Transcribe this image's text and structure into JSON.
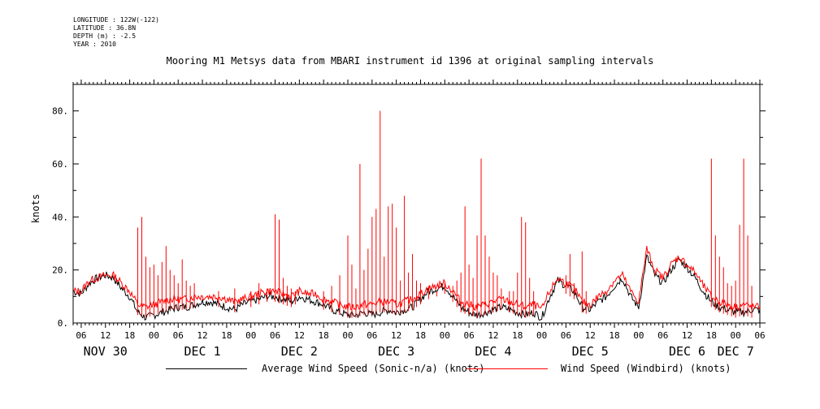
{
  "meta": {
    "longitude": "LONGITUDE : 122W(-122)",
    "latitude": "LATITUDE : 36.8N",
    "depth": "DEPTH (m) : -2.5",
    "year": "YEAR : 2010"
  },
  "chart_data": {
    "type": "line",
    "title": "Mooring M1 Metsys data from MBARI instrument id 1396 at original sampling intervals",
    "ylabel": "knots",
    "xlabel": "",
    "ylim": [
      0,
      90
    ],
    "xlim_hours": [
      4,
      174
    ],
    "y_ticks": [
      0,
      20,
      40,
      60,
      80
    ],
    "y_tick_labels": [
      "0.",
      "20.",
      "40.",
      "60.",
      "80."
    ],
    "x_hour_ticks": [
      {
        "h": 6,
        "label": "06"
      },
      {
        "h": 12,
        "label": "12"
      },
      {
        "h": 18,
        "label": "18"
      },
      {
        "h": 24,
        "label": "00"
      },
      {
        "h": 30,
        "label": "06"
      },
      {
        "h": 36,
        "label": "12"
      },
      {
        "h": 42,
        "label": "18"
      },
      {
        "h": 48,
        "label": "00"
      },
      {
        "h": 54,
        "label": "06"
      },
      {
        "h": 60,
        "label": "12"
      },
      {
        "h": 66,
        "label": "18"
      },
      {
        "h": 72,
        "label": "00"
      },
      {
        "h": 78,
        "label": "06"
      },
      {
        "h": 84,
        "label": "12"
      },
      {
        "h": 90,
        "label": "18"
      },
      {
        "h": 96,
        "label": "00"
      },
      {
        "h": 102,
        "label": "06"
      },
      {
        "h": 108,
        "label": "12"
      },
      {
        "h": 114,
        "label": "18"
      },
      {
        "h": 120,
        "label": "00"
      },
      {
        "h": 126,
        "label": "06"
      },
      {
        "h": 132,
        "label": "12"
      },
      {
        "h": 138,
        "label": "18"
      },
      {
        "h": 144,
        "label": "00"
      },
      {
        "h": 150,
        "label": "06"
      },
      {
        "h": 156,
        "label": "12"
      },
      {
        "h": 162,
        "label": "18"
      },
      {
        "h": 168,
        "label": "00"
      },
      {
        "h": 174,
        "label": "06"
      }
    ],
    "x_day_labels": [
      {
        "h": 12,
        "label": "NOV 30"
      },
      {
        "h": 36,
        "label": "DEC  1"
      },
      {
        "h": 60,
        "label": "DEC  2"
      },
      {
        "h": 84,
        "label": "DEC  3"
      },
      {
        "h": 108,
        "label": "DEC  4"
      },
      {
        "h": 132,
        "label": "DEC  5"
      },
      {
        "h": 156,
        "label": "DEC  6"
      },
      {
        "h": 168,
        "label": "DEC  7"
      }
    ],
    "series": [
      {
        "name": "Average Wind Speed (Sonic-n/a) (knots)",
        "color": "#000000",
        "x": [
          4,
          6,
          8,
          10,
          12,
          14,
          16,
          18,
          20,
          22,
          24,
          26,
          28,
          30,
          32,
          34,
          36,
          38,
          40,
          42,
          44,
          46,
          48,
          50,
          52,
          54,
          56,
          58,
          60,
          62,
          64,
          66,
          68,
          70,
          72,
          74,
          76,
          78,
          80,
          82,
          84,
          86,
          88,
          90,
          92,
          94,
          96,
          98,
          100,
          102,
          104,
          106,
          108,
          110,
          112,
          114,
          116,
          118,
          120,
          122,
          124,
          126,
          128,
          130,
          132,
          134,
          136,
          138,
          140,
          142,
          144,
          146,
          148,
          150,
          152,
          154,
          156,
          158,
          160,
          162,
          164,
          166,
          168,
          170,
          172,
          174
        ],
        "values": [
          12,
          11,
          15,
          17,
          18,
          17,
          13,
          10,
          4,
          2,
          3,
          4,
          5,
          6,
          6,
          7,
          8,
          8,
          7,
          6,
          5,
          7,
          8,
          9,
          10,
          10,
          9,
          8,
          10,
          9,
          8,
          7,
          5,
          4,
          3,
          3,
          4,
          3,
          4,
          5,
          4,
          5,
          6,
          9,
          12,
          13,
          14,
          10,
          6,
          4,
          3,
          4,
          5,
          6,
          5,
          4,
          3,
          4,
          2,
          10,
          16,
          14,
          12,
          6,
          5,
          8,
          10,
          14,
          17,
          10,
          6,
          25,
          18,
          15,
          20,
          24,
          21,
          17,
          12,
          8,
          6,
          5,
          4,
          4,
          5,
          5
        ]
      },
      {
        "name": "Wind Speed (Windbird) (knots)",
        "color": "#ff0000",
        "x": [
          4,
          6,
          8,
          10,
          12,
          14,
          16,
          18,
          20,
          22,
          24,
          26,
          28,
          30,
          32,
          34,
          36,
          38,
          40,
          42,
          44,
          46,
          48,
          50,
          52,
          54,
          56,
          58,
          60,
          62,
          64,
          66,
          68,
          70,
          72,
          74,
          76,
          78,
          80,
          82,
          84,
          86,
          88,
          90,
          92,
          94,
          96,
          98,
          100,
          102,
          104,
          106,
          108,
          110,
          112,
          114,
          116,
          118,
          120,
          122,
          124,
          126,
          128,
          130,
          132,
          134,
          136,
          138,
          140,
          142,
          144,
          146,
          148,
          150,
          152,
          154,
          156,
          158,
          160,
          162,
          164,
          166,
          168,
          170,
          172,
          174
        ],
        "values": [
          12,
          12,
          16,
          17,
          18,
          18,
          15,
          12,
          7,
          6,
          7,
          8,
          9,
          9,
          9,
          10,
          10,
          10,
          10,
          9,
          8,
          9,
          10,
          11,
          12,
          12,
          11,
          10,
          12,
          11,
          11,
          9,
          8,
          7,
          6,
          6,
          7,
          7,
          8,
          8,
          7,
          8,
          9,
          11,
          13,
          14,
          15,
          12,
          8,
          7,
          6,
          7,
          8,
          9,
          8,
          7,
          6,
          7,
          5,
          12,
          17,
          15,
          13,
          8,
          7,
          10,
          12,
          16,
          18,
          12,
          8,
          28,
          20,
          17,
          22,
          25,
          22,
          19,
          14,
          10,
          8,
          7,
          6,
          7,
          6,
          6
        ]
      }
    ],
    "red_spikes": [
      [
        20,
        36
      ],
      [
        21,
        40
      ],
      [
        22,
        25
      ],
      [
        23,
        21
      ],
      [
        24,
        22
      ],
      [
        25,
        18
      ],
      [
        26,
        23
      ],
      [
        27,
        29
      ],
      [
        28,
        20
      ],
      [
        29,
        18
      ],
      [
        30,
        15
      ],
      [
        31,
        24
      ],
      [
        32,
        16
      ],
      [
        33,
        14
      ],
      [
        34,
        15
      ],
      [
        40,
        12
      ],
      [
        44,
        13
      ],
      [
        48,
        12
      ],
      [
        50,
        15
      ],
      [
        52,
        13
      ],
      [
        54,
        41
      ],
      [
        55,
        39
      ],
      [
        56,
        17
      ],
      [
        57,
        14
      ],
      [
        58,
        13
      ],
      [
        59,
        12
      ],
      [
        66,
        12
      ],
      [
        68,
        14
      ],
      [
        70,
        18
      ],
      [
        72,
        33
      ],
      [
        73,
        22
      ],
      [
        74,
        13
      ],
      [
        75,
        60
      ],
      [
        76,
        20
      ],
      [
        77,
        28
      ],
      [
        78,
        40
      ],
      [
        79,
        43
      ],
      [
        80,
        80
      ],
      [
        81,
        25
      ],
      [
        82,
        44
      ],
      [
        83,
        45
      ],
      [
        84,
        36
      ],
      [
        85,
        16
      ],
      [
        86,
        48
      ],
      [
        87,
        19
      ],
      [
        88,
        26
      ],
      [
        89,
        16
      ],
      [
        90,
        15
      ],
      [
        92,
        14
      ],
      [
        94,
        12
      ],
      [
        96,
        15
      ],
      [
        98,
        14
      ],
      [
        99,
        16
      ],
      [
        100,
        19
      ],
      [
        101,
        44
      ],
      [
        102,
        22
      ],
      [
        103,
        17
      ],
      [
        104,
        33
      ],
      [
        105,
        62
      ],
      [
        106,
        33
      ],
      [
        107,
        25
      ],
      [
        108,
        19
      ],
      [
        109,
        18
      ],
      [
        110,
        13
      ],
      [
        112,
        12
      ],
      [
        113,
        12
      ],
      [
        114,
        19
      ],
      [
        115,
        40
      ],
      [
        116,
        38
      ],
      [
        117,
        17
      ],
      [
        118,
        12
      ],
      [
        126,
        18
      ],
      [
        127,
        26
      ],
      [
        128,
        15
      ],
      [
        130,
        27
      ],
      [
        131,
        12
      ],
      [
        162,
        62
      ],
      [
        163,
        33
      ],
      [
        164,
        25
      ],
      [
        165,
        21
      ],
      [
        166,
        15
      ],
      [
        167,
        14
      ],
      [
        168,
        16
      ],
      [
        169,
        37
      ],
      [
        170,
        62
      ],
      [
        171,
        33
      ],
      [
        172,
        14
      ]
    ]
  }
}
